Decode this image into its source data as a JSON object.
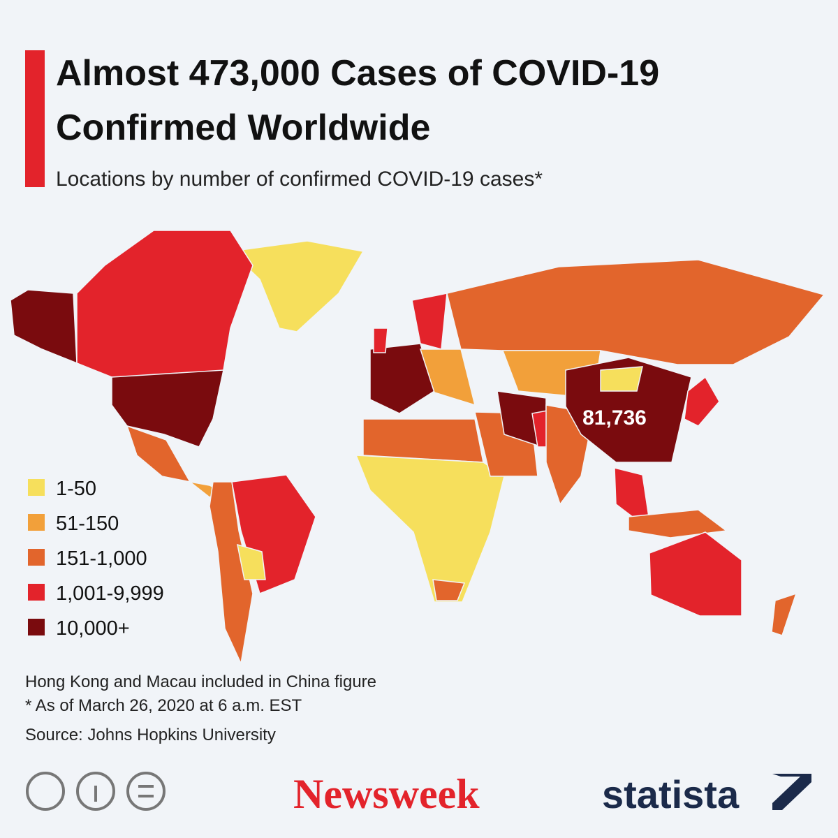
{
  "header": {
    "title_lines": [
      "Almost 473,000 Cases of COVID-19",
      "Confirmed Worldwide"
    ],
    "subtitle": "Locations by number of confirmed COVID-19 cases*"
  },
  "map": {
    "annotation": "81,736"
  },
  "legend": {
    "items": [
      {
        "label": "1-50",
        "color": "#f6df5c"
      },
      {
        "label": "51-150",
        "color": "#f2a03a"
      },
      {
        "label": "151-1,000",
        "color": "#e2652c"
      },
      {
        "label": "1,001-9,999",
        "color": "#e3232b"
      },
      {
        "label": "10,000+",
        "color": "#7a0b0e"
      }
    ]
  },
  "notes": [
    "Hong Kong and Macau included in China figure",
    "* As of March 26, 2020 at 6 a.m. EST"
  ],
  "source": "Source: Johns Hopkins University",
  "brands": [
    "Newsweek",
    "statista"
  ]
}
